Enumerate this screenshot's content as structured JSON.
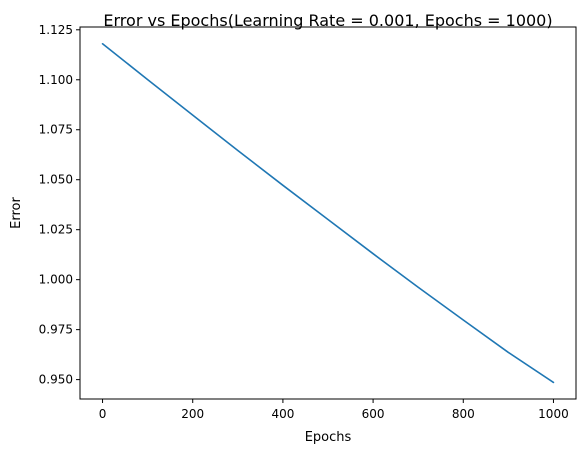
{
  "chart_data": {
    "type": "line",
    "title": "Error vs Epochs(Learning Rate = 0.001, Epochs = 1000)",
    "xlabel": "Epochs",
    "ylabel": "Error",
    "xlim": [
      -50,
      1050
    ],
    "ylim": [
      0.9403,
      1.1264
    ],
    "xticks": [
      0,
      200,
      400,
      600,
      800,
      1000
    ],
    "xtick_labels": [
      "0",
      "200",
      "400",
      "600",
      "800",
      "1000"
    ],
    "yticks": [
      0.95,
      0.975,
      1.0,
      1.025,
      1.05,
      1.075,
      1.1,
      1.125
    ],
    "ytick_labels": [
      "0.950",
      "0.975",
      "1.000",
      "1.025",
      "1.050",
      "1.075",
      "1.100",
      "1.125"
    ],
    "grid": false,
    "series": [
      {
        "color": "#1f77b4",
        "x": [
          0,
          100,
          200,
          300,
          400,
          500,
          600,
          700,
          800,
          900,
          1000
        ],
        "y": [
          1.118,
          1.1001,
          1.0823,
          1.0646,
          1.0472,
          1.0301,
          1.013,
          0.9962,
          0.9798,
          0.9636,
          0.9486
        ]
      }
    ]
  }
}
